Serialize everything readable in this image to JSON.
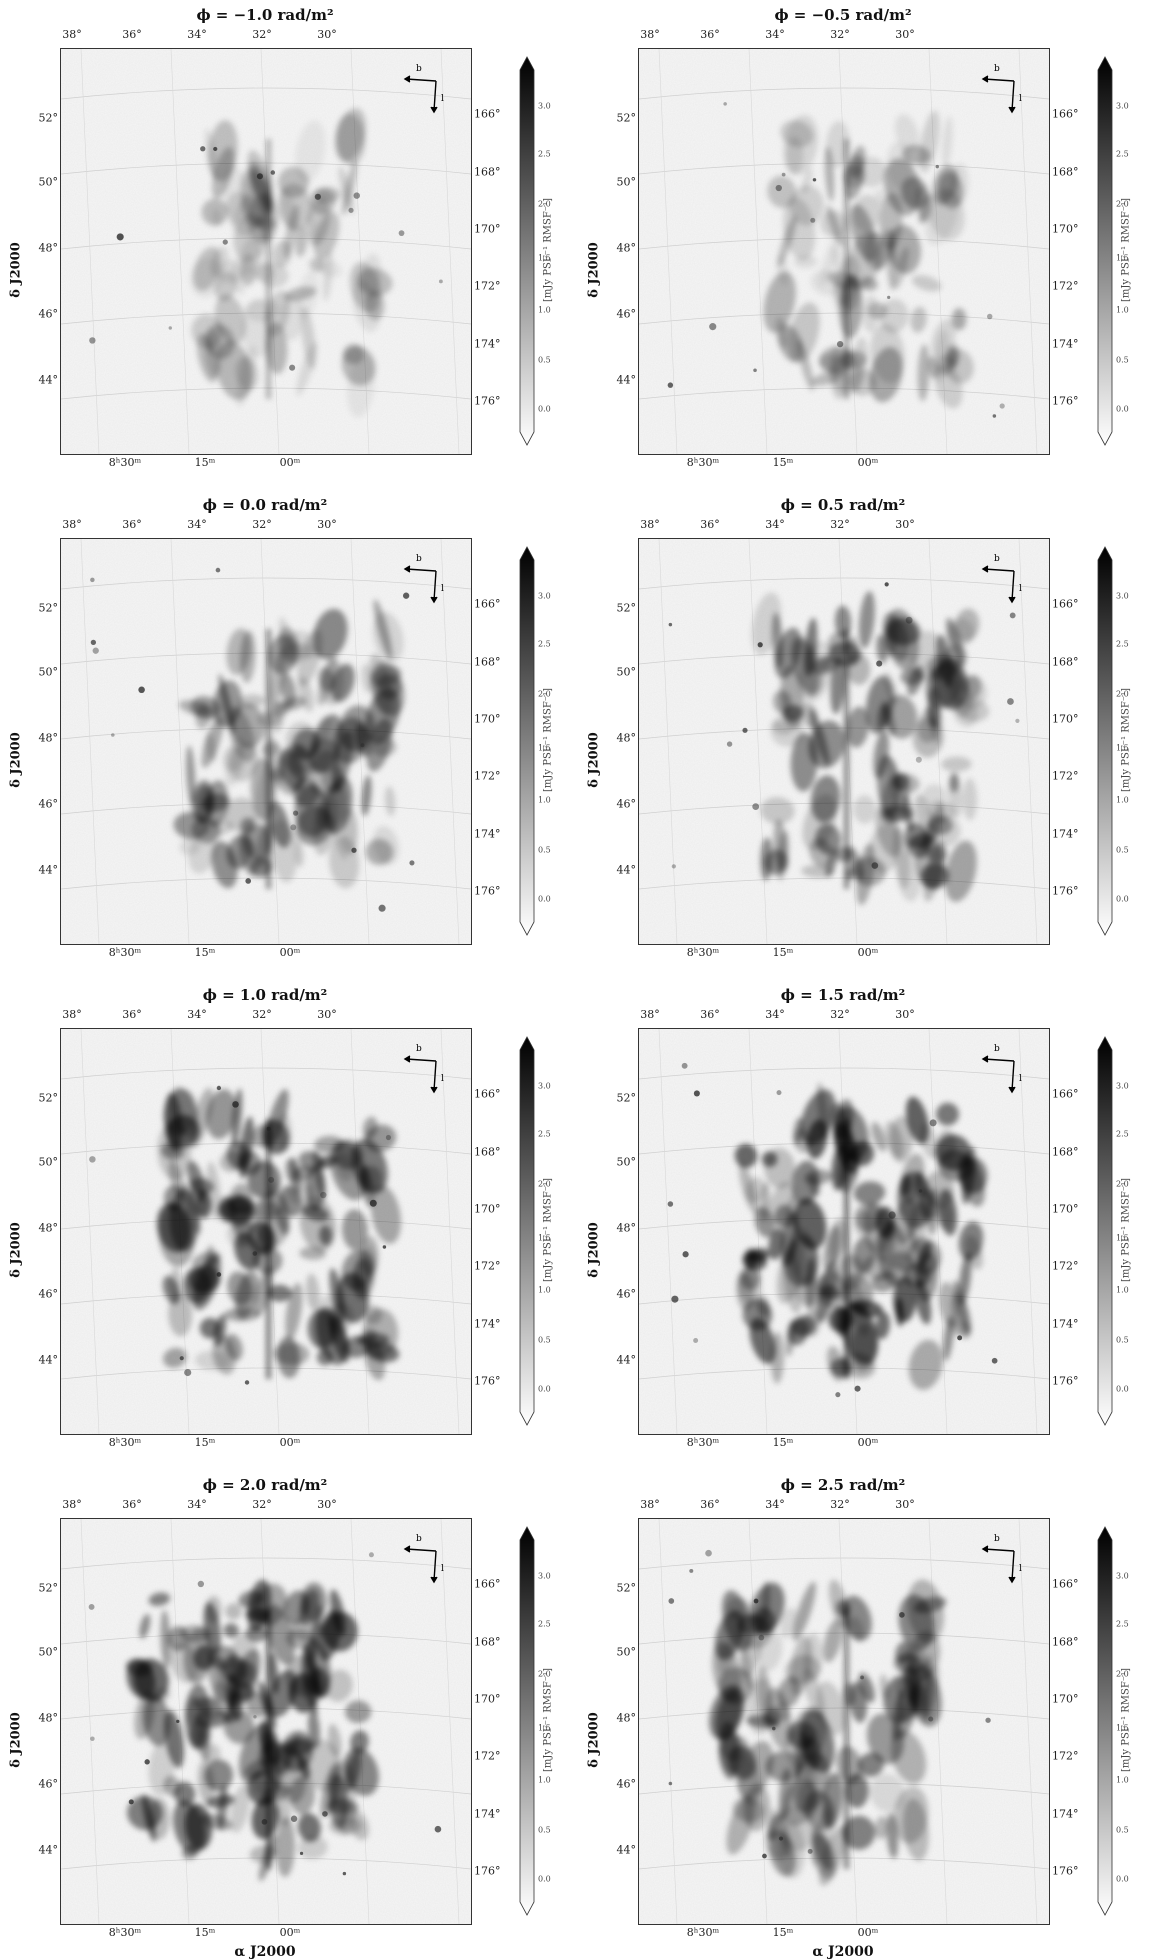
{
  "figure": {
    "x_axis_label": "α J2000",
    "y_axis_label": "δ J2000",
    "colorbar_label": "[mJy PSF⁻¹ RMSF⁻¹]",
    "colorbar_ticks": [
      "3.0",
      "2.5",
      "2.0",
      "1.5",
      "1.0",
      "0.5",
      "0.0"
    ],
    "colormap": [
      "#ffffff",
      "#000000"
    ],
    "top_ticks": [
      "38°",
      "36°",
      "34°",
      "32°",
      "30°"
    ],
    "bottom_ticks": [
      "8ʰ30ᵐ",
      "15ᵐ",
      "00ᵐ"
    ],
    "left_ticks": [
      "52°",
      "50°",
      "48°",
      "46°",
      "44°"
    ],
    "right_ticks": [
      "166°",
      "168°",
      "170°",
      "172°",
      "174°",
      "176°"
    ],
    "compass": {
      "b": "b",
      "l": "l"
    }
  },
  "panels": [
    {
      "title": "ϕ = −1.0 rad/m²",
      "phi": -1.0,
      "intensity": 0.35
    },
    {
      "title": "ϕ = −0.5 rad/m²",
      "phi": -0.5,
      "intensity": 0.45
    },
    {
      "title": "ϕ = 0.0 rad/m²",
      "phi": 0.0,
      "intensity": 0.65
    },
    {
      "title": "ϕ = 0.5 rad/m²",
      "phi": 0.5,
      "intensity": 0.7
    },
    {
      "title": "ϕ = 1.0 rad/m²",
      "phi": 1.0,
      "intensity": 0.8
    },
    {
      "title": "ϕ = 1.5 rad/m²",
      "phi": 1.5,
      "intensity": 0.9
    },
    {
      "title": "ϕ = 2.0 rad/m²",
      "phi": 2.0,
      "intensity": 0.85
    },
    {
      "title": "ϕ = 2.5 rad/m²",
      "phi": 2.5,
      "intensity": 0.7
    }
  ]
}
